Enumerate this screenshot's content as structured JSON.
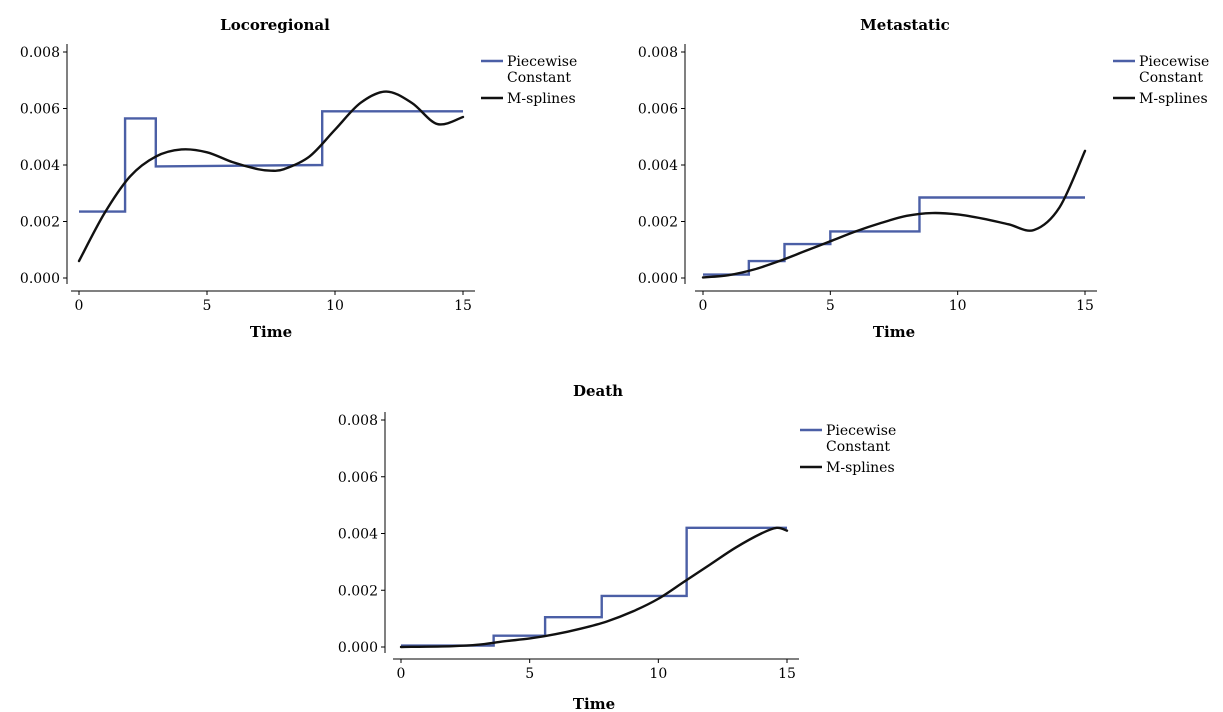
{
  "colors": {
    "piecewise": "#4b5fa6",
    "splines": "#111111"
  },
  "chart_data": [
    {
      "type": "line",
      "title": "Locoregional",
      "xlabel": "Time",
      "xlim": [
        0,
        15
      ],
      "ylim": [
        0,
        0.008
      ],
      "xticks": [
        "0",
        "5",
        "10",
        "15"
      ],
      "yticks": [
        "0.000",
        "0.002",
        "0.004",
        "0.006",
        "0.008"
      ],
      "legend": {
        "placement": "right",
        "entries": [
          "Piecewise Constant",
          "M-splines"
        ]
      },
      "series": [
        {
          "name": "Piecewise Constant",
          "shape": "step",
          "x": [
            0,
            1.8,
            1.8,
            3.0,
            3.0,
            9.5,
            9.5,
            15
          ],
          "y": [
            0.00235,
            0.00235,
            0.00565,
            0.00565,
            0.00395,
            0.004,
            0.0059,
            0.0059
          ]
        },
        {
          "name": "M-splines",
          "shape": "smooth",
          "x": [
            0,
            1,
            2,
            3,
            4,
            5,
            6,
            7,
            7.5,
            8,
            9,
            10,
            11,
            12,
            13,
            14,
            15
          ],
          "y": [
            0.0006,
            0.0023,
            0.0036,
            0.0043,
            0.00455,
            0.00445,
            0.0041,
            0.00385,
            0.0038,
            0.00385,
            0.0043,
            0.00525,
            0.0062,
            0.0066,
            0.0062,
            0.00545,
            0.0057
          ]
        }
      ]
    },
    {
      "type": "line",
      "title": "Metastatic",
      "xlabel": "Time",
      "xlim": [
        0,
        15
      ],
      "ylim": [
        0,
        0.008
      ],
      "xticks": [
        "0",
        "5",
        "10",
        "15"
      ],
      "yticks": [
        "0.000",
        "0.002",
        "0.004",
        "0.006",
        "0.008"
      ],
      "legend": {
        "placement": "right",
        "entries": [
          "Piecewise Constant",
          "M-splines"
        ]
      },
      "series": [
        {
          "name": "Piecewise Constant",
          "shape": "step",
          "x": [
            0,
            1.8,
            1.8,
            3.2,
            3.2,
            5.0,
            5.0,
            8.5,
            8.5,
            15
          ],
          "y": [
            0.00012,
            0.00012,
            0.0006,
            0.0006,
            0.0012,
            0.0012,
            0.00165,
            0.00165,
            0.00285,
            0.00285
          ]
        },
        {
          "name": "M-splines",
          "shape": "smooth",
          "x": [
            0,
            1,
            2,
            3,
            4,
            5,
            6,
            7,
            8,
            9,
            10,
            11,
            12,
            13,
            14,
            15
          ],
          "y": [
            2e-05,
            0.0001,
            0.0003,
            0.0006,
            0.00095,
            0.0013,
            0.00165,
            0.00195,
            0.0022,
            0.0023,
            0.00225,
            0.0021,
            0.0019,
            0.0017,
            0.0025,
            0.0045
          ]
        }
      ]
    },
    {
      "type": "line",
      "title": "Death",
      "xlabel": "Time",
      "xlim": [
        0,
        15
      ],
      "ylim": [
        0,
        0.008
      ],
      "xticks": [
        "0",
        "5",
        "10",
        "15"
      ],
      "yticks": [
        "0.000",
        "0.002",
        "0.004",
        "0.006",
        "0.008"
      ],
      "legend": {
        "placement": "right",
        "entries": [
          "Piecewise Constant",
          "M-splines"
        ]
      },
      "series": [
        {
          "name": "Piecewise Constant",
          "shape": "step",
          "x": [
            0,
            3.6,
            3.6,
            5.6,
            5.6,
            7.8,
            7.8,
            11.1,
            11.1,
            15
          ],
          "y": [
            5e-05,
            5e-05,
            0.0004,
            0.0004,
            0.00105,
            0.00105,
            0.0018,
            0.0018,
            0.0042,
            0.0042
          ]
        },
        {
          "name": "M-splines",
          "shape": "smooth",
          "x": [
            0,
            2,
            3,
            4,
            5,
            6,
            7,
            8,
            9,
            10,
            11,
            12,
            13,
            14,
            14.6,
            15
          ],
          "y": [
            0.0,
            3e-05,
            8e-05,
            0.0002,
            0.0003,
            0.00045,
            0.00065,
            0.0009,
            0.00125,
            0.0017,
            0.0023,
            0.0029,
            0.0035,
            0.004,
            0.0042,
            0.0041
          ]
        }
      ]
    }
  ]
}
